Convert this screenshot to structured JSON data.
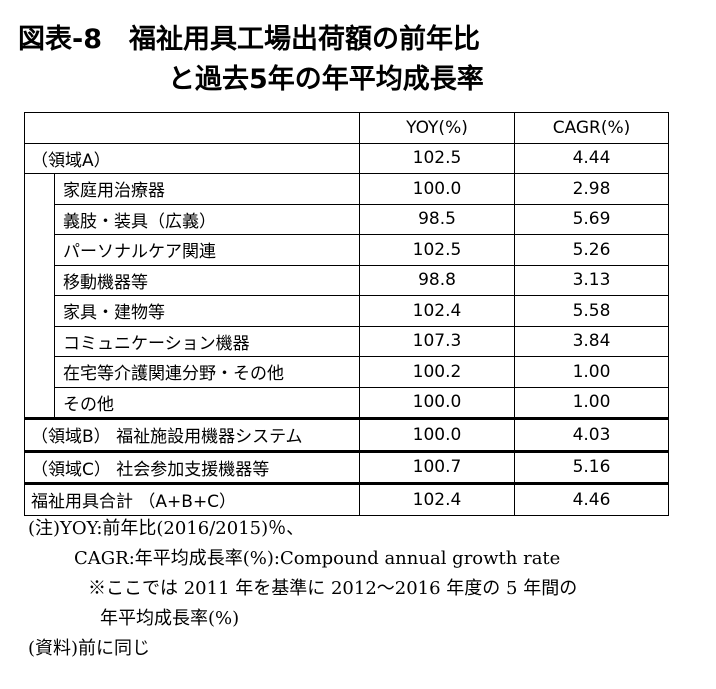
{
  "title": {
    "line1": "図表-8　福祉用具工場出荷額の前年比",
    "line2": "と過去5年の年平均成長率"
  },
  "table": {
    "headers": [
      "",
      "YOY(%)",
      "CAGR(%)"
    ],
    "area_a": {
      "label": "（領域A）",
      "yoy": "102.5",
      "cagr": "4.44"
    },
    "area_a_items": [
      {
        "label": "家庭用治療器",
        "yoy": "100.0",
        "cagr": "2.98"
      },
      {
        "label": "義肢・装具（広義）",
        "yoy": "98.5",
        "cagr": "5.69"
      },
      {
        "label": "パーソナルケア関連",
        "yoy": "102.5",
        "cagr": "5.26"
      },
      {
        "label": "移動機器等",
        "yoy": "98.8",
        "cagr": "3.13"
      },
      {
        "label": "家具・建物等",
        "yoy": "102.4",
        "cagr": "5.58"
      },
      {
        "label": "コミュニケーション機器",
        "yoy": "107.3",
        "cagr": "3.84"
      },
      {
        "label": "在宅等介護関連分野・その他",
        "yoy": "100.2",
        "cagr": "1.00"
      },
      {
        "label": "その他",
        "yoy": "100.0",
        "cagr": "1.00"
      }
    ],
    "area_b": {
      "label": "（領域B） 福祉施設用機器システム",
      "yoy": "100.0",
      "cagr": "4.03"
    },
    "area_c": {
      "label": "（領域C） 社会参加支援機器等",
      "yoy": "100.7",
      "cagr": "5.16"
    },
    "total": {
      "label": "福祉用具合計 （A+B+C）",
      "yoy": "102.4",
      "cagr": "4.46"
    }
  },
  "notes": {
    "line1": "(注)YOY:前年比(2016/2015)％、",
    "line2": "CAGR:年平均成長率(%):Compound annual growth rate",
    "line3": "※ここでは 2011 年を基準に 2012～2016 年度の 5 年間の",
    "line4": "年平均成長率(%)",
    "source": "(資料)前に同じ"
  }
}
